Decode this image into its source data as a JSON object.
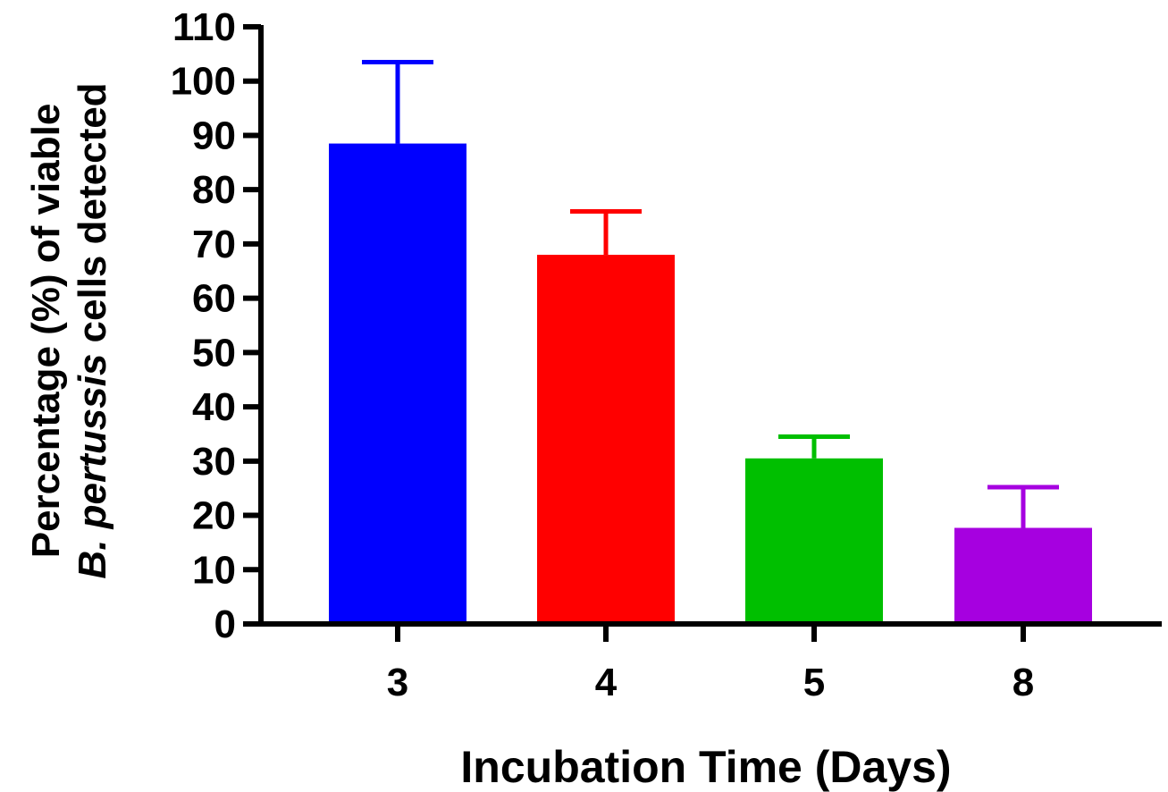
{
  "chart_data": {
    "type": "bar",
    "title": "",
    "xlabel": "Incubation Time (Days)",
    "ylabel_line1": "Percentage (%) of viable",
    "ylabel_line2_italic": "B. pertussis",
    "ylabel_line2_rest": " cells detected",
    "categories": [
      "3",
      "4",
      "5",
      "8"
    ],
    "values": [
      88.5,
      68,
      30.5,
      17.7
    ],
    "error_plus": [
      15,
      8,
      4,
      7.5
    ],
    "colors": [
      "#0000ff",
      "#ff0000",
      "#00bf00",
      "#a600e0"
    ],
    "ylim": [
      0,
      110
    ],
    "yticks": [
      "0",
      "10",
      "20",
      "30",
      "40",
      "50",
      "60",
      "70",
      "80",
      "90",
      "100",
      "110"
    ],
    "grid": false,
    "legend": "none"
  }
}
